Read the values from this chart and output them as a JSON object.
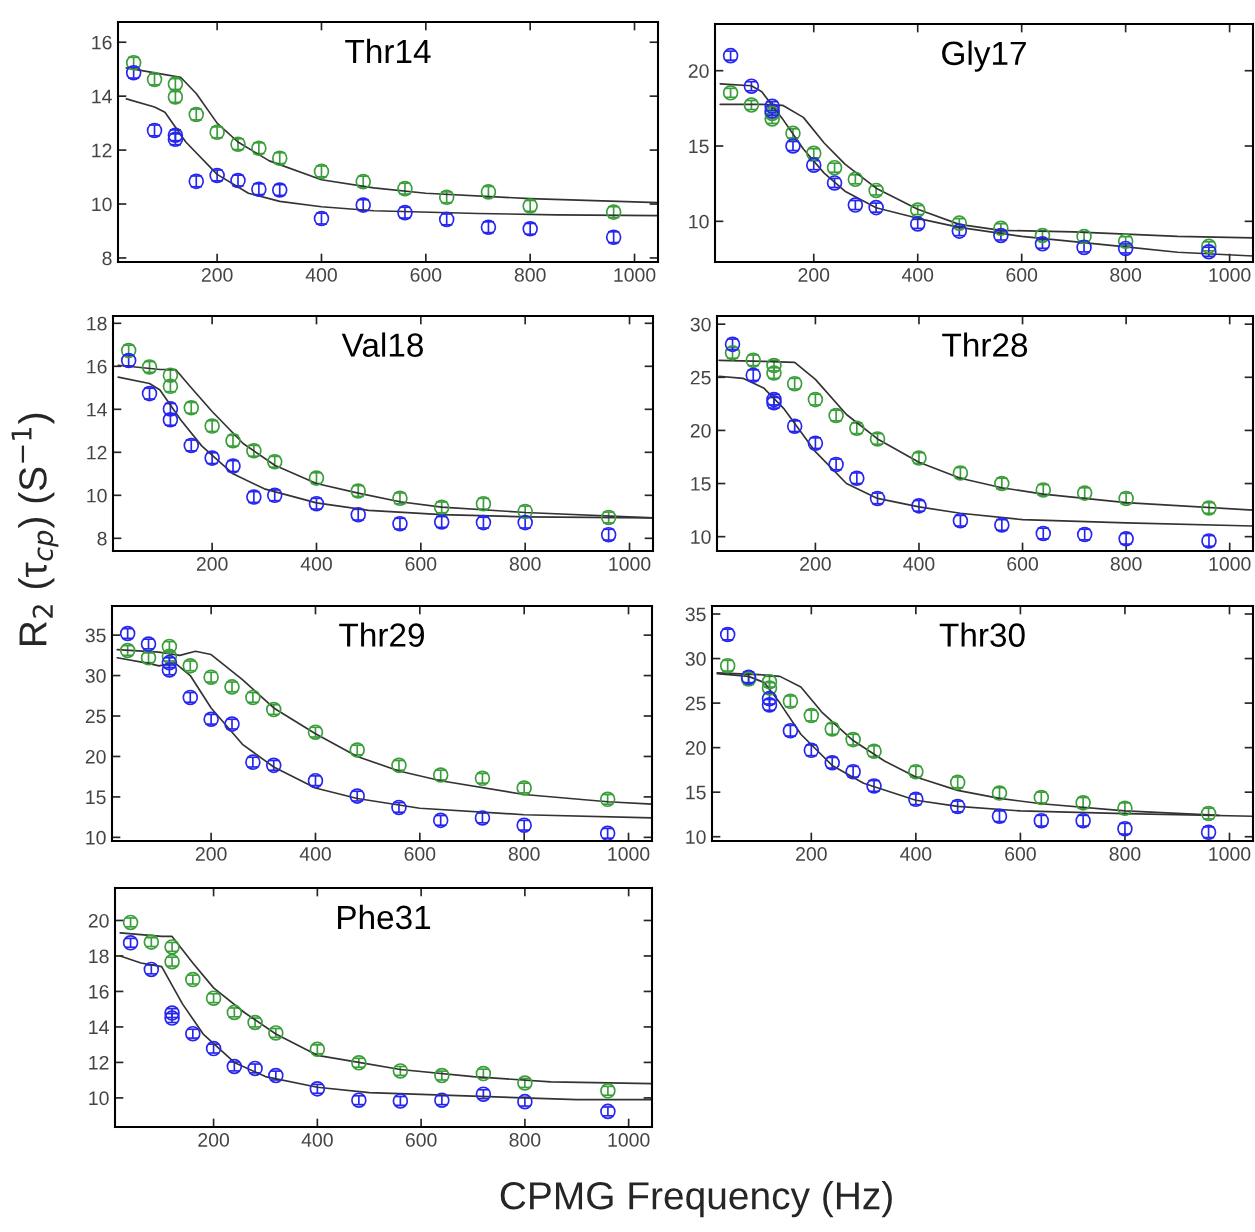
{
  "chart_data": [
    {
      "type": "scatter",
      "title": "Thr14",
      "xlabel": "CPMG Frequency (Hz)",
      "ylabel": "R$_{2}$ (τ$_{cp}$) (S$^{−1}$)",
      "marker": "circle",
      "xlim": [
        10,
        1045
      ],
      "xticks": [
        200,
        400,
        600,
        800,
        1000
      ],
      "ylim": [
        7.85,
        16.75
      ],
      "yticks": [
        8,
        10,
        12,
        14,
        16
      ],
      "x": [
        40,
        80,
        120,
        120,
        160,
        200,
        240,
        280,
        320,
        400,
        480,
        560,
        640,
        720,
        800,
        960
      ],
      "series": [
        {
          "color": "#3a9e3a",
          "values": [
            15.24,
            14.62,
            14.45,
            13.97,
            13.32,
            12.66,
            12.22,
            12.07,
            11.7,
            11.21,
            10.83,
            10.57,
            10.25,
            10.45,
            9.93,
            9.7
          ],
          "errors": [
            0.2,
            0.2,
            0.2,
            0.2,
            0.2,
            0.2,
            0.2,
            0.2,
            0.2,
            0.2,
            0.2,
            0.2,
            0.2,
            0.2,
            0.2,
            0.2
          ]
        },
        {
          "color": "#2626f0",
          "values": [
            14.87,
            12.73,
            12.55,
            12.4,
            10.84,
            11.06,
            10.87,
            10.55,
            10.52,
            9.46,
            9.96,
            9.68,
            9.43,
            9.14,
            9.08,
            8.77
          ],
          "errors": [
            0.2,
            0.2,
            0.2,
            0.2,
            0.2,
            0.2,
            0.2,
            0.2,
            0.2,
            0.2,
            0.2,
            0.2,
            0.2,
            0.2,
            0.2,
            0.2
          ]
        },
        {
          "type": "line",
          "marker": "none",
          "color": "#333333",
          "x": [
            26,
            100,
            130,
            160,
            200,
            240,
            300,
            400,
            500,
            600,
            800,
            1045
          ],
          "values": [
            15.05,
            14.8,
            14.7,
            14.1,
            13.0,
            12.3,
            11.6,
            10.9,
            10.6,
            10.4,
            10.2,
            10.05
          ]
        },
        {
          "type": "line",
          "marker": "none",
          "color": "#333333",
          "x": [
            26,
            80,
            100,
            140,
            200,
            260,
            320,
            400,
            500,
            700,
            850,
            1045
          ],
          "values": [
            13.9,
            13.6,
            13.4,
            12.3,
            11.1,
            10.4,
            10.1,
            9.9,
            9.75,
            9.65,
            9.6,
            9.57
          ]
        }
      ]
    },
    {
      "type": "scatter",
      "title": "Gly17",
      "marker": "circle",
      "xlim": [
        10,
        1045
      ],
      "xticks": [
        200,
        400,
        600,
        800,
        1000
      ],
      "ylim": [
        7.3,
        23.1
      ],
      "yticks": [
        10,
        15,
        20
      ],
      "x": [
        40,
        80,
        120,
        120,
        160,
        200,
        240,
        280,
        320,
        400,
        480,
        560,
        640,
        720,
        800,
        960
      ],
      "series": [
        {
          "color": "#3a9e3a",
          "values": [
            18.53,
            17.72,
            17.16,
            16.8,
            15.84,
            14.52,
            13.56,
            12.79,
            12.05,
            10.75,
            9.88,
            9.54,
            9.06,
            8.99,
            8.68,
            8.34
          ],
          "errors": [
            0.3,
            0.3,
            0.3,
            0.3,
            0.3,
            0.3,
            0.3,
            0.3,
            0.3,
            0.3,
            0.3,
            0.3,
            0.3,
            0.3,
            0.3,
            0.3
          ]
        },
        {
          "color": "#2626f0",
          "values": [
            21.0,
            18.97,
            17.64,
            17.33,
            15.0,
            13.73,
            12.55,
            11.08,
            10.91,
            9.83,
            9.35,
            9.06,
            8.51,
            8.27,
            8.2,
            7.98
          ],
          "errors": [
            0.3,
            0.3,
            0.3,
            0.3,
            0.3,
            0.3,
            0.3,
            0.3,
            0.3,
            0.3,
            0.3,
            0.3,
            0.3,
            0.3,
            0.3,
            0.3
          ]
        },
        {
          "type": "line",
          "marker": "none",
          "color": "#333333",
          "x": [
            20,
            100,
            140,
            180,
            220,
            260,
            320,
            400,
            480,
            560,
            700,
            900,
            1045
          ],
          "values": [
            17.76,
            17.76,
            17.7,
            16.9,
            15.2,
            13.8,
            12.2,
            10.8,
            9.8,
            9.4,
            9.3,
            9.0,
            8.9
          ]
        },
        {
          "type": "line",
          "marker": "none",
          "color": "#333333",
          "x": [
            20,
            80,
            100,
            140,
            180,
            220,
            260,
            320,
            400,
            480,
            600,
            800,
            900,
            1045
          ],
          "values": [
            19.13,
            19.0,
            18.6,
            16.8,
            14.8,
            13.2,
            12.0,
            10.9,
            10.2,
            9.6,
            9.0,
            8.3,
            7.95,
            7.7
          ]
        }
      ]
    },
    {
      "type": "scatter",
      "title": "Val18",
      "marker": "circle",
      "xlim": [
        10,
        1045
      ],
      "xticks": [
        200,
        400,
        600,
        800,
        1000
      ],
      "ylim": [
        7.41,
        18.34
      ],
      "yticks": [
        8,
        10,
        12,
        14,
        16,
        18
      ],
      "x": [
        40,
        80,
        120,
        120,
        160,
        200,
        240,
        280,
        320,
        400,
        480,
        560,
        640,
        720,
        800,
        960
      ],
      "series": [
        {
          "color": "#3a9e3a",
          "values": [
            16.73,
            15.97,
            15.58,
            15.07,
            14.07,
            13.22,
            12.54,
            12.07,
            11.56,
            10.8,
            10.2,
            9.86,
            9.44,
            9.61,
            9.25,
            8.97
          ],
          "errors": [
            0.25,
            0.25,
            0.25,
            0.25,
            0.25,
            0.25,
            0.25,
            0.25,
            0.25,
            0.25,
            0.25,
            0.25,
            0.25,
            0.25,
            0.25,
            0.25
          ]
        },
        {
          "color": "#2626f0",
          "values": [
            16.27,
            14.73,
            14.02,
            13.51,
            12.32,
            11.73,
            11.36,
            9.92,
            10.0,
            9.61,
            9.1,
            8.68,
            8.76,
            8.73,
            8.73,
            8.17
          ],
          "errors": [
            0.25,
            0.25,
            0.25,
            0.25,
            0.25,
            0.25,
            0.25,
            0.25,
            0.25,
            0.25,
            0.25,
            0.25,
            0.25,
            0.25,
            0.25,
            0.25
          ]
        },
        {
          "type": "line",
          "marker": "none",
          "color": "#333333",
          "x": [
            20,
            100,
            130,
            160,
            200,
            260,
            320,
            400,
            480,
            560,
            640,
            800,
            1045
          ],
          "values": [
            16.05,
            15.85,
            15.85,
            15.0,
            13.9,
            12.4,
            11.4,
            10.55,
            10.1,
            9.7,
            9.45,
            9.2,
            8.95
          ]
        },
        {
          "type": "line",
          "marker": "none",
          "color": "#333333",
          "x": [
            20,
            80,
            100,
            140,
            180,
            240,
            300,
            400,
            500,
            640,
            800,
            1045
          ],
          "values": [
            15.5,
            15.2,
            14.9,
            13.5,
            12.3,
            11.0,
            10.3,
            9.65,
            9.3,
            9.1,
            9.0,
            8.95
          ]
        }
      ]
    },
    {
      "type": "scatter",
      "title": "Thr28",
      "marker": "circle",
      "xlim": [
        10,
        1045
      ],
      "xticks": [
        200,
        400,
        600,
        800,
        1000
      ],
      "ylim": [
        8.65,
        30.77
      ],
      "yticks": [
        10,
        15,
        20,
        25,
        30
      ],
      "x": [
        40,
        80,
        120,
        120,
        160,
        200,
        240,
        280,
        320,
        400,
        480,
        560,
        640,
        720,
        800,
        960
      ],
      "series": [
        {
          "color": "#3a9e3a",
          "values": [
            27.3,
            26.6,
            26.1,
            25.4,
            24.4,
            22.9,
            21.4,
            20.2,
            19.2,
            17.4,
            16.0,
            15.0,
            14.4,
            14.1,
            13.6,
            12.7
          ],
          "errors": [
            0.5,
            0.5,
            0.5,
            0.5,
            0.5,
            0.5,
            0.5,
            0.5,
            0.5,
            0.5,
            0.5,
            0.5,
            0.5,
            0.5,
            0.5,
            0.5
          ]
        },
        {
          "color": "#2626f0",
          "values": [
            28.1,
            25.2,
            22.9,
            22.6,
            20.4,
            18.8,
            16.8,
            15.5,
            13.6,
            12.9,
            11.5,
            11.1,
            10.3,
            10.2,
            9.8,
            9.6
          ],
          "errors": [
            0.5,
            0.5,
            0.5,
            0.5,
            0.5,
            0.5,
            0.5,
            0.5,
            0.5,
            0.5,
            0.5,
            0.5,
            0.5,
            0.5,
            0.5,
            0.5
          ]
        },
        {
          "type": "line",
          "marker": "none",
          "color": "#333333",
          "x": [
            14,
            100,
            160,
            200,
            260,
            320,
            400,
            480,
            560,
            640,
            800,
            1045
          ],
          "values": [
            26.6,
            26.5,
            26.4,
            24.8,
            21.5,
            19.2,
            17.0,
            15.5,
            14.6,
            14.0,
            13.2,
            12.5
          ]
        },
        {
          "type": "line",
          "marker": "none",
          "color": "#333333",
          "x": [
            14,
            60,
            100,
            140,
            200,
            260,
            320,
            400,
            480,
            600,
            800,
            1045
          ],
          "values": [
            25.1,
            24.9,
            24.0,
            22.0,
            18.0,
            15.0,
            13.6,
            12.8,
            12.2,
            11.6,
            11.3,
            11.0
          ]
        }
      ]
    },
    {
      "type": "scatter",
      "title": "Thr29",
      "marker": "circle",
      "xlim": [
        10,
        1045
      ],
      "xticks": [
        200,
        400,
        600,
        800,
        1000
      ],
      "ylim": [
        9.55,
        38.6
      ],
      "yticks": [
        10,
        15,
        20,
        25,
        30,
        35
      ],
      "x": [
        40,
        80,
        120,
        120,
        160,
        200,
        240,
        280,
        320,
        400,
        480,
        560,
        640,
        720,
        800,
        960
      ],
      "series": [
        {
          "color": "#3a9e3a",
          "values": [
            33.1,
            32.2,
            33.6,
            32.4,
            31.2,
            29.8,
            28.6,
            27.3,
            25.8,
            23.0,
            20.8,
            18.9,
            17.7,
            17.3,
            16.1,
            14.7
          ],
          "errors": [
            0.6,
            0.6,
            0.6,
            0.6,
            0.6,
            0.6,
            0.6,
            0.6,
            0.6,
            0.6,
            0.6,
            0.6,
            0.6,
            0.6,
            0.6,
            0.6
          ]
        },
        {
          "color": "#2626f0",
          "values": [
            35.2,
            33.9,
            31.6,
            30.7,
            27.3,
            24.6,
            24.0,
            19.3,
            18.9,
            17.0,
            15.1,
            13.7,
            12.1,
            12.4,
            11.5,
            10.5
          ],
          "errors": [
            0.6,
            0.6,
            0.6,
            0.6,
            0.6,
            0.6,
            0.6,
            0.6,
            0.6,
            0.6,
            0.6,
            0.6,
            0.6,
            0.6,
            0.6,
            0.6
          ]
        },
        {
          "type": "line",
          "marker": "none",
          "color": "#333333",
          "x": [
            20,
            100,
            140,
            170,
            200,
            260,
            320,
            400,
            480,
            560,
            640,
            800,
            960,
            1045
          ],
          "values": [
            33.2,
            32.9,
            32.5,
            33.0,
            32.6,
            29.5,
            26.0,
            22.8,
            20.0,
            18.2,
            17.0,
            15.3,
            14.4,
            14.1
          ]
        },
        {
          "type": "line",
          "marker": "none",
          "color": "#333333",
          "x": [
            20,
            80,
            100,
            130,
            160,
            200,
            260,
            320,
            400,
            480,
            600,
            800,
            1045
          ],
          "values": [
            32.2,
            31.5,
            31.2,
            31.6,
            30.0,
            26.0,
            21.5,
            18.7,
            16.1,
            14.8,
            13.6,
            12.8,
            12.4
          ]
        }
      ]
    },
    {
      "type": "scatter",
      "title": "Thr30",
      "marker": "circle",
      "xlim": [
        10,
        1045
      ],
      "xticks": [
        200,
        400,
        600,
        800,
        1000
      ],
      "ylim": [
        9.52,
        35.9
      ],
      "yticks": [
        10,
        15,
        20,
        25,
        30,
        35
      ],
      "x": [
        40,
        80,
        120,
        120,
        160,
        200,
        240,
        280,
        320,
        400,
        480,
        560,
        640,
        720,
        800,
        960
      ],
      "series": [
        {
          "color": "#3a9e3a",
          "values": [
            29.2,
            27.7,
            27.4,
            26.7,
            25.2,
            23.6,
            22.1,
            20.9,
            19.6,
            17.3,
            16.1,
            14.9,
            14.4,
            13.8,
            13.2,
            12.6
          ],
          "errors": [
            0.6,
            0.6,
            0.6,
            0.6,
            0.6,
            0.6,
            0.6,
            0.6,
            0.6,
            0.6,
            0.6,
            0.6,
            0.6,
            0.6,
            0.6,
            0.6
          ]
        },
        {
          "color": "#2626f0",
          "values": [
            32.7,
            27.9,
            25.5,
            24.8,
            21.9,
            19.7,
            18.3,
            17.3,
            15.7,
            14.2,
            13.4,
            12.3,
            11.8,
            11.8,
            10.9,
            10.5
          ],
          "errors": [
            0.6,
            0.6,
            0.6,
            0.6,
            0.6,
            0.6,
            0.6,
            0.6,
            0.6,
            0.6,
            0.6,
            0.6,
            0.6,
            0.6,
            0.6,
            0.6
          ]
        },
        {
          "type": "line",
          "marker": "none",
          "color": "#333333",
          "x": [
            20,
            100,
            140,
            180,
            220,
            280,
            340,
            400,
            480,
            560,
            640,
            800,
            980
          ],
          "values": [
            28.4,
            28.2,
            28.0,
            26.8,
            24.0,
            20.8,
            18.5,
            16.7,
            15.2,
            14.3,
            13.7,
            12.9,
            12.4
          ]
        },
        {
          "type": "line",
          "marker": "none",
          "color": "#333333",
          "x": [
            20,
            80,
            110,
            140,
            180,
            240,
            300,
            400,
            480,
            600,
            800,
            1045
          ],
          "values": [
            28.3,
            28.0,
            27.3,
            25.0,
            21.5,
            18.0,
            16.0,
            14.1,
            13.4,
            12.9,
            12.6,
            12.3
          ]
        }
      ]
    },
    {
      "type": "scatter",
      "title": "Phe31",
      "marker": "circle",
      "xlim": [
        10,
        1045
      ],
      "xticks": [
        200,
        400,
        600,
        800,
        1000
      ],
      "ylim": [
        8.36,
        21.83
      ],
      "yticks": [
        10,
        12,
        14,
        16,
        18,
        20
      ],
      "x": [
        40,
        80,
        120,
        120,
        160,
        200,
        240,
        280,
        320,
        400,
        480,
        560,
        640,
        720,
        800,
        960
      ],
      "series": [
        {
          "color": "#3a9e3a",
          "values": [
            19.89,
            18.78,
            18.51,
            17.68,
            16.67,
            15.62,
            14.82,
            14.25,
            13.66,
            12.74,
            11.98,
            11.52,
            11.26,
            11.37,
            10.84,
            10.4
          ],
          "errors": [
            0.25,
            0.25,
            0.25,
            0.25,
            0.25,
            0.25,
            0.25,
            0.25,
            0.25,
            0.25,
            0.25,
            0.25,
            0.25,
            0.25,
            0.25,
            0.25
          ]
        },
        {
          "color": "#2626f0",
          "values": [
            18.74,
            17.24,
            14.78,
            14.5,
            13.62,
            12.78,
            11.77,
            11.66,
            11.26,
            10.51,
            9.87,
            9.83,
            9.87,
            10.21,
            9.79,
            9.24
          ],
          "errors": [
            0.25,
            0.25,
            0.25,
            0.25,
            0.25,
            0.25,
            0.25,
            0.25,
            0.25,
            0.25,
            0.25,
            0.25,
            0.25,
            0.25,
            0.25,
            0.25
          ]
        },
        {
          "type": "line",
          "marker": "none",
          "color": "#333333",
          "x": [
            20,
            100,
            120,
            160,
            200,
            260,
            320,
            400,
            480,
            560,
            700,
            850,
            1045
          ],
          "values": [
            19.3,
            19.1,
            19.1,
            17.6,
            16.2,
            14.8,
            13.6,
            12.4,
            12.0,
            11.6,
            11.2,
            10.9,
            10.8
          ]
        },
        {
          "type": "line",
          "marker": "none",
          "color": "#333333",
          "x": [
            20,
            60,
            100,
            140,
            180,
            240,
            300,
            400,
            500,
            700,
            900,
            1045
          ],
          "values": [
            18.0,
            17.6,
            17.4,
            15.3,
            13.6,
            12.0,
            11.2,
            10.6,
            10.3,
            10.1,
            9.9,
            9.9
          ]
        }
      ]
    }
  ]
}
